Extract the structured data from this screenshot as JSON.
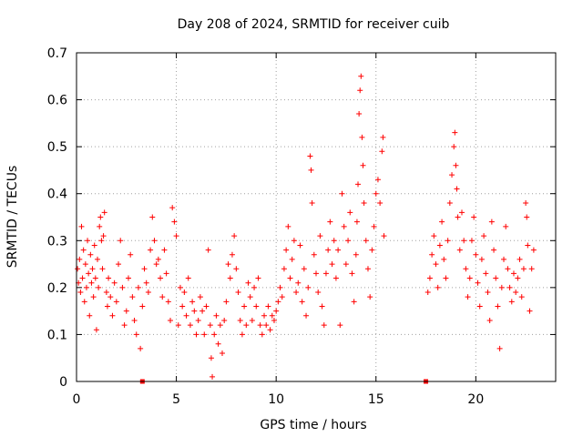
{
  "chart_data": {
    "type": "scatter",
    "title": "Day 208 of 2024, SRMTID for receiver cuib",
    "xlabel": "GPS time / hours",
    "ylabel": "SRMTID / TECUs",
    "xlim": [
      0,
      24
    ],
    "ylim": [
      0,
      0.7
    ],
    "xticks": [
      0,
      5,
      10,
      15,
      20
    ],
    "xtick_labels": [
      "0",
      "5",
      "10",
      "15",
      "20"
    ],
    "yticks": [
      0,
      0.1,
      0.2,
      0.3,
      0.4,
      0.5,
      0.6,
      0.7
    ],
    "ytick_labels": [
      "0",
      "0.1",
      "0.2",
      "0.3",
      "0.4",
      "0.5",
      "0.6",
      "0.7"
    ],
    "grid": true,
    "marker": "+",
    "color": "#ff0000",
    "gap_markers_x": [
      3.3,
      17.5
    ],
    "series": [
      {
        "name": "cuib",
        "points": [
          [
            0.05,
            0.24
          ],
          [
            0.1,
            0.21
          ],
          [
            0.15,
            0.26
          ],
          [
            0.2,
            0.19
          ],
          [
            0.25,
            0.33
          ],
          [
            0.3,
            0.22
          ],
          [
            0.35,
            0.28
          ],
          [
            0.4,
            0.17
          ],
          [
            0.45,
            0.25
          ],
          [
            0.5,
            0.2
          ],
          [
            0.55,
            0.3
          ],
          [
            0.6,
            0.23
          ],
          [
            0.65,
            0.14
          ],
          [
            0.7,
            0.27
          ],
          [
            0.75,
            0.21
          ],
          [
            0.8,
            0.24
          ],
          [
            0.85,
            0.18
          ],
          [
            0.9,
            0.29
          ],
          [
            0.95,
            0.22
          ],
          [
            1.0,
            0.11
          ],
          [
            1.05,
            0.26
          ],
          [
            1.1,
            0.2
          ],
          [
            1.15,
            0.33
          ],
          [
            1.2,
            0.35
          ],
          [
            1.25,
            0.3
          ],
          [
            1.3,
            0.24
          ],
          [
            1.35,
            0.31
          ],
          [
            1.4,
            0.36
          ],
          [
            1.5,
            0.19
          ],
          [
            1.55,
            0.16
          ],
          [
            1.6,
            0.22
          ],
          [
            1.7,
            0.18
          ],
          [
            1.8,
            0.14
          ],
          [
            1.9,
            0.21
          ],
          [
            2.0,
            0.17
          ],
          [
            2.1,
            0.25
          ],
          [
            2.2,
            0.3
          ],
          [
            2.3,
            0.2
          ],
          [
            2.4,
            0.12
          ],
          [
            2.5,
            0.15
          ],
          [
            2.6,
            0.22
          ],
          [
            2.7,
            0.27
          ],
          [
            2.8,
            0.18
          ],
          [
            2.9,
            0.13
          ],
          [
            3.0,
            0.1
          ],
          [
            3.1,
            0.2
          ],
          [
            3.2,
            0.07
          ],
          [
            3.3,
            0.16
          ],
          [
            3.4,
            0.24
          ],
          [
            3.5,
            0.21
          ],
          [
            3.6,
            0.19
          ],
          [
            3.7,
            0.28
          ],
          [
            3.8,
            0.35
          ],
          [
            3.9,
            0.3
          ],
          [
            4.0,
            0.25
          ],
          [
            4.1,
            0.26
          ],
          [
            4.2,
            0.22
          ],
          [
            4.3,
            0.18
          ],
          [
            4.4,
            0.28
          ],
          [
            4.5,
            0.23
          ],
          [
            4.6,
            0.17
          ],
          [
            4.7,
            0.13
          ],
          [
            4.8,
            0.37
          ],
          [
            4.9,
            0.34
          ],
          [
            5.0,
            0.31
          ],
          [
            5.1,
            0.12
          ],
          [
            5.2,
            0.2
          ],
          [
            5.3,
            0.16
          ],
          [
            5.4,
            0.19
          ],
          [
            5.5,
            0.14
          ],
          [
            5.6,
            0.22
          ],
          [
            5.7,
            0.12
          ],
          [
            5.8,
            0.17
          ],
          [
            5.9,
            0.15
          ],
          [
            6.0,
            0.1
          ],
          [
            6.1,
            0.13
          ],
          [
            6.2,
            0.18
          ],
          [
            6.3,
            0.15
          ],
          [
            6.4,
            0.1
          ],
          [
            6.5,
            0.16
          ],
          [
            6.6,
            0.28
          ],
          [
            6.7,
            0.12
          ],
          [
            6.75,
            0.05
          ],
          [
            6.8,
            0.01
          ],
          [
            6.9,
            0.1
          ],
          [
            7.0,
            0.14
          ],
          [
            7.1,
            0.08
          ],
          [
            7.2,
            0.12
          ],
          [
            7.3,
            0.06
          ],
          [
            7.4,
            0.13
          ],
          [
            7.5,
            0.17
          ],
          [
            7.6,
            0.25
          ],
          [
            7.7,
            0.22
          ],
          [
            7.8,
            0.27
          ],
          [
            7.9,
            0.31
          ],
          [
            8.0,
            0.24
          ],
          [
            8.1,
            0.19
          ],
          [
            8.2,
            0.13
          ],
          [
            8.3,
            0.1
          ],
          [
            8.4,
            0.16
          ],
          [
            8.5,
            0.12
          ],
          [
            8.6,
            0.21
          ],
          [
            8.7,
            0.18
          ],
          [
            8.8,
            0.13
          ],
          [
            8.9,
            0.2
          ],
          [
            9.0,
            0.16
          ],
          [
            9.1,
            0.22
          ],
          [
            9.2,
            0.12
          ],
          [
            9.3,
            0.1
          ],
          [
            9.4,
            0.14
          ],
          [
            9.5,
            0.12
          ],
          [
            9.6,
            0.16
          ],
          [
            9.7,
            0.11
          ],
          [
            9.8,
            0.14
          ],
          [
            9.9,
            0.13
          ],
          [
            10.0,
            0.15
          ],
          [
            10.1,
            0.17
          ],
          [
            10.2,
            0.2
          ],
          [
            10.3,
            0.18
          ],
          [
            10.4,
            0.24
          ],
          [
            10.5,
            0.28
          ],
          [
            10.6,
            0.33
          ],
          [
            10.7,
            0.22
          ],
          [
            10.8,
            0.26
          ],
          [
            10.9,
            0.3
          ],
          [
            11.0,
            0.19
          ],
          [
            11.1,
            0.21
          ],
          [
            11.2,
            0.29
          ],
          [
            11.3,
            0.17
          ],
          [
            11.4,
            0.24
          ],
          [
            11.5,
            0.14
          ],
          [
            11.6,
            0.2
          ],
          [
            11.7,
            0.48
          ],
          [
            11.75,
            0.45
          ],
          [
            11.8,
            0.38
          ],
          [
            11.9,
            0.27
          ],
          [
            12.0,
            0.23
          ],
          [
            12.1,
            0.19
          ],
          [
            12.2,
            0.31
          ],
          [
            12.3,
            0.16
          ],
          [
            12.4,
            0.12
          ],
          [
            12.5,
            0.23
          ],
          [
            12.6,
            0.28
          ],
          [
            12.7,
            0.34
          ],
          [
            12.8,
            0.25
          ],
          [
            12.9,
            0.3
          ],
          [
            13.0,
            0.22
          ],
          [
            13.1,
            0.28
          ],
          [
            13.2,
            0.12
          ],
          [
            13.3,
            0.4
          ],
          [
            13.4,
            0.33
          ],
          [
            13.5,
            0.25
          ],
          [
            13.6,
            0.3
          ],
          [
            13.7,
            0.36
          ],
          [
            13.8,
            0.23
          ],
          [
            13.9,
            0.17
          ],
          [
            14.0,
            0.27
          ],
          [
            14.05,
            0.34
          ],
          [
            14.1,
            0.42
          ],
          [
            14.15,
            0.57
          ],
          [
            14.2,
            0.62
          ],
          [
            14.25,
            0.65
          ],
          [
            14.3,
            0.52
          ],
          [
            14.35,
            0.46
          ],
          [
            14.4,
            0.38
          ],
          [
            14.5,
            0.3
          ],
          [
            14.6,
            0.24
          ],
          [
            14.7,
            0.18
          ],
          [
            14.8,
            0.28
          ],
          [
            14.9,
            0.33
          ],
          [
            15.0,
            0.4
          ],
          [
            15.1,
            0.43
          ],
          [
            15.2,
            0.38
          ],
          [
            15.3,
            0.49
          ],
          [
            15.35,
            0.52
          ],
          [
            15.4,
            0.31
          ],
          [
            17.6,
            0.19
          ],
          [
            17.7,
            0.22
          ],
          [
            17.8,
            0.27
          ],
          [
            17.9,
            0.31
          ],
          [
            18.0,
            0.25
          ],
          [
            18.1,
            0.2
          ],
          [
            18.2,
            0.29
          ],
          [
            18.3,
            0.34
          ],
          [
            18.4,
            0.26
          ],
          [
            18.5,
            0.22
          ],
          [
            18.6,
            0.3
          ],
          [
            18.7,
            0.38
          ],
          [
            18.8,
            0.44
          ],
          [
            18.9,
            0.5
          ],
          [
            18.95,
            0.53
          ],
          [
            19.0,
            0.46
          ],
          [
            19.05,
            0.41
          ],
          [
            19.1,
            0.35
          ],
          [
            19.2,
            0.28
          ],
          [
            19.3,
            0.36
          ],
          [
            19.4,
            0.3
          ],
          [
            19.5,
            0.24
          ],
          [
            19.6,
            0.18
          ],
          [
            19.7,
            0.22
          ],
          [
            19.8,
            0.3
          ],
          [
            19.9,
            0.35
          ],
          [
            20.0,
            0.27
          ],
          [
            20.1,
            0.21
          ],
          [
            20.2,
            0.16
          ],
          [
            20.3,
            0.26
          ],
          [
            20.4,
            0.31
          ],
          [
            20.5,
            0.23
          ],
          [
            20.6,
            0.19
          ],
          [
            20.7,
            0.13
          ],
          [
            20.8,
            0.34
          ],
          [
            20.9,
            0.28
          ],
          [
            21.0,
            0.22
          ],
          [
            21.1,
            0.16
          ],
          [
            21.2,
            0.07
          ],
          [
            21.3,
            0.2
          ],
          [
            21.4,
            0.26
          ],
          [
            21.5,
            0.33
          ],
          [
            21.6,
            0.24
          ],
          [
            21.7,
            0.2
          ],
          [
            21.8,
            0.17
          ],
          [
            21.9,
            0.23
          ],
          [
            22.0,
            0.19
          ],
          [
            22.1,
            0.22
          ],
          [
            22.2,
            0.26
          ],
          [
            22.3,
            0.18
          ],
          [
            22.4,
            0.24
          ],
          [
            22.5,
            0.38
          ],
          [
            22.55,
            0.35
          ],
          [
            22.6,
            0.29
          ],
          [
            22.7,
            0.15
          ],
          [
            22.8,
            0.24
          ],
          [
            22.9,
            0.28
          ]
        ]
      }
    ]
  }
}
